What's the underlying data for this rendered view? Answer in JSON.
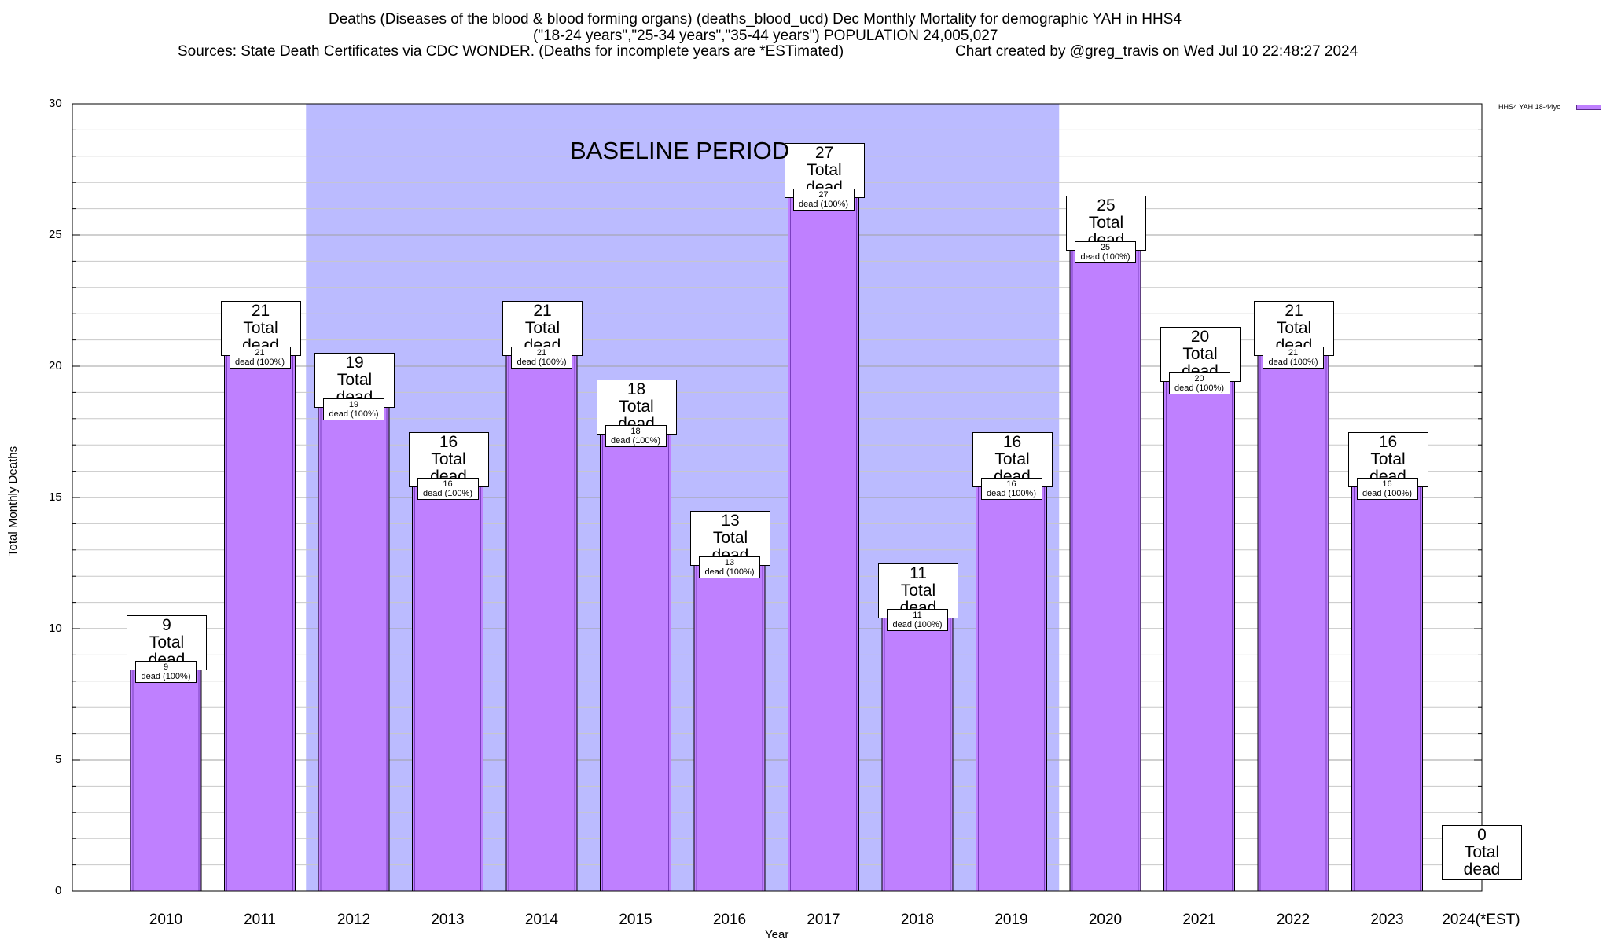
{
  "title": {
    "line1": "Deaths (Diseases of the blood & blood forming organs) (deaths_blood_ucd) Dec Monthly Mortality for demographic YAH in HHS4",
    "line2": "(\"18-24 years\",\"25-34 years\",\"35-44 years\") POPULATION 24,005,027",
    "line3_left": "Sources: State Death Certificates via CDC WONDER. (Deaths for incomplete years are *ESTimated)",
    "line3_right": "Chart created by @greg_travis on Wed Jul 10 22:48:27 2024"
  },
  "chart_data": {
    "type": "bar",
    "categories": [
      "2010",
      "2011",
      "2012",
      "2013",
      "2014",
      "2015",
      "2016",
      "2017",
      "2018",
      "2019",
      "2020",
      "2021",
      "2022",
      "2023",
      "2024(*EST)"
    ],
    "series": [
      {
        "name": "HHS4 YAH 18-44yo",
        "values": [
          9,
          21,
          19,
          16,
          21,
          18,
          13,
          27,
          11,
          16,
          25,
          20,
          21,
          16,
          0
        ],
        "color": "#bf80ff"
      }
    ],
    "xlabel": "Year",
    "ylabel": "Total Monthly Deaths",
    "ylim": [
      0,
      30
    ],
    "yticks": [
      0,
      5,
      10,
      15,
      20,
      25,
      30
    ],
    "grid": true,
    "legend_position": "top-right",
    "baseline_period": {
      "label": "BASELINE PERIOD",
      "from": "2012",
      "to": "2019",
      "color": "#bbbbff"
    },
    "bar_label_total": "Total dead",
    "bar_label_inner": "dead (100%)"
  }
}
